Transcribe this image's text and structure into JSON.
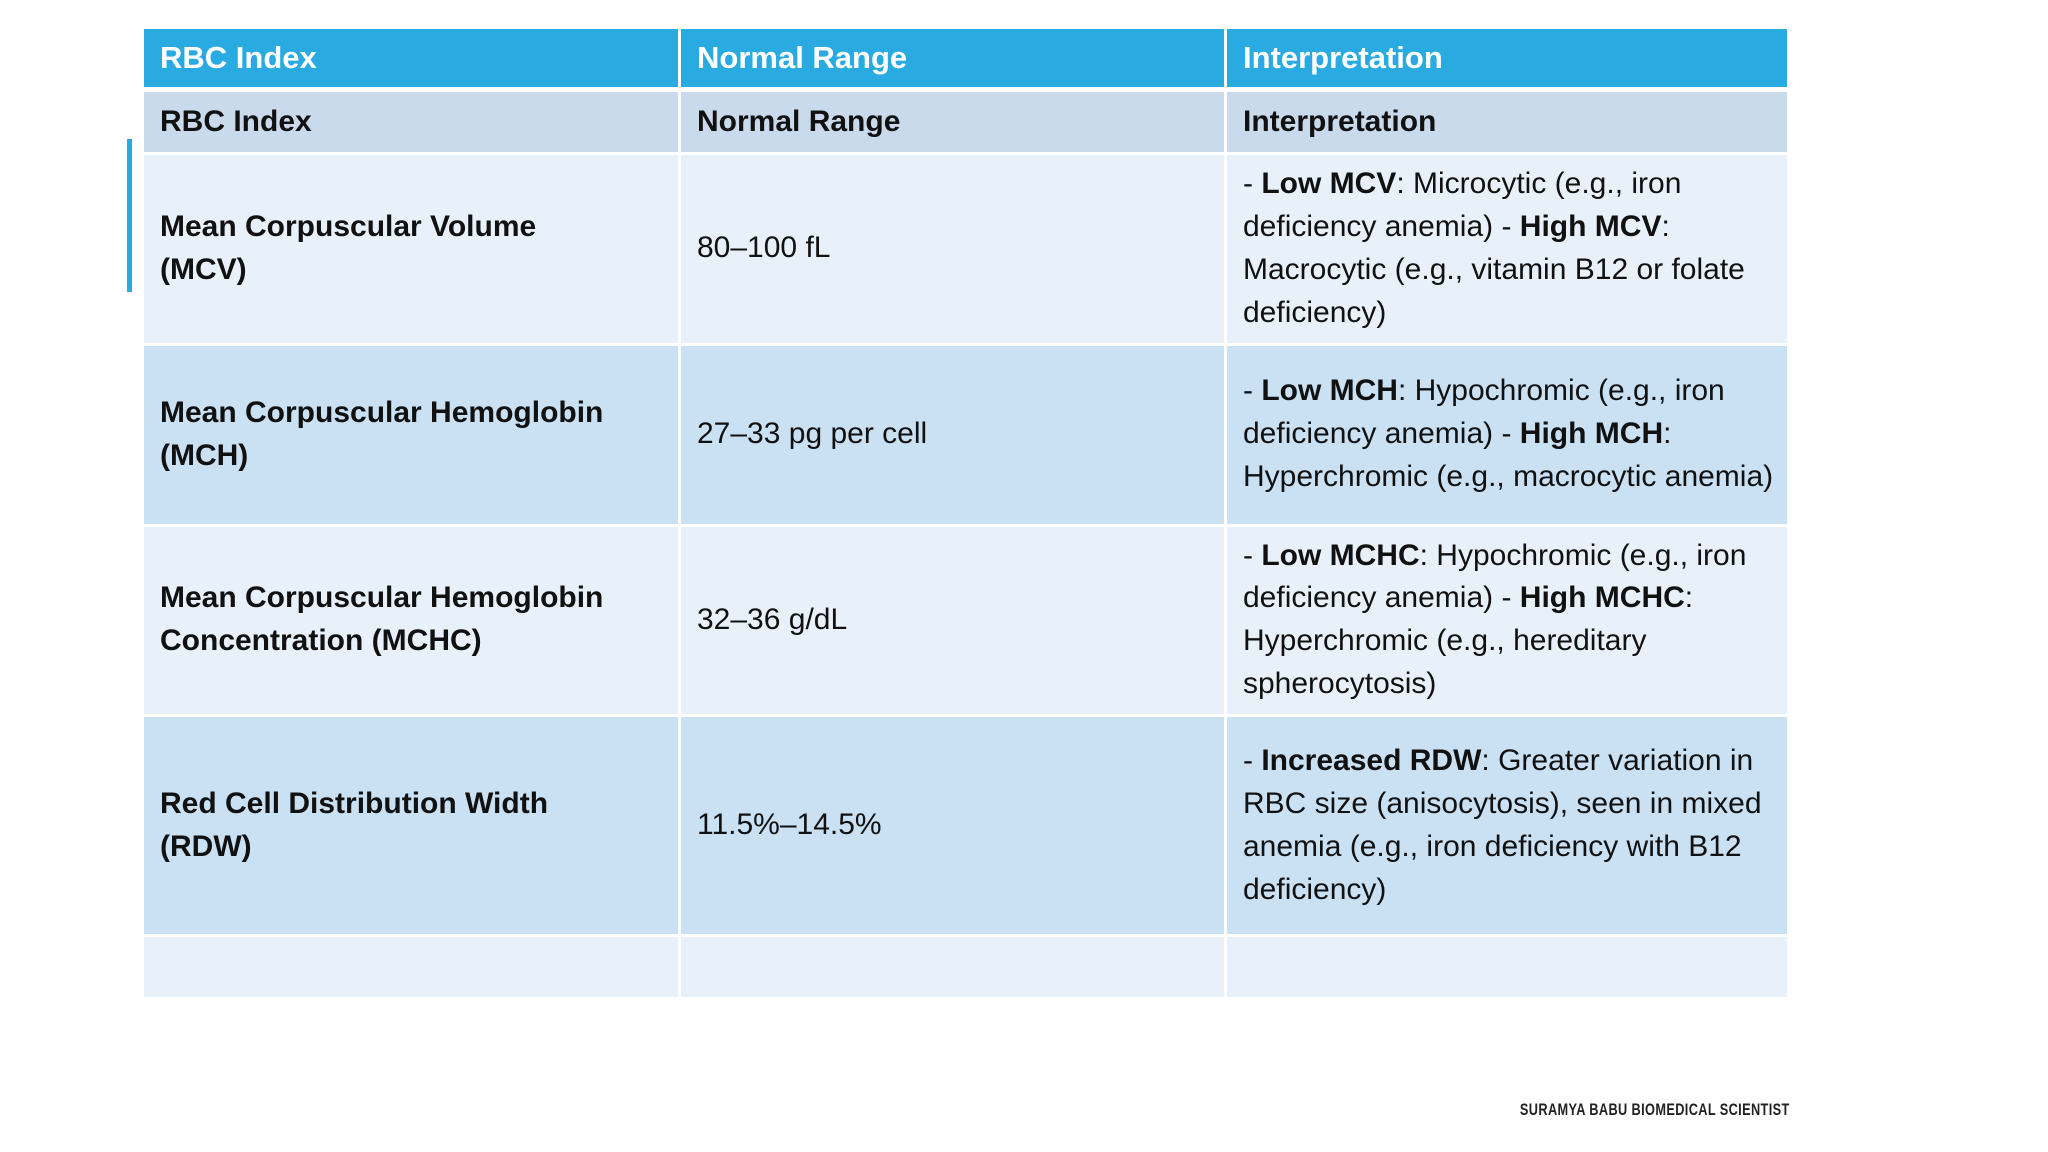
{
  "colors": {
    "header_bg": "#29ABE2",
    "subheader_bg": "#C8DAEC",
    "row_light": "#E8F1F9",
    "row_dark": "#CAE0F3",
    "header_text": "#FFFFFF",
    "body_text": "#111111",
    "accent": "#29ABE2"
  },
  "accent_bar": {
    "present": true
  },
  "table": {
    "header": {
      "col1": "RBC Index",
      "col2": "Normal Range",
      "col3": "Interpretation"
    },
    "subheader": {
      "col1": "RBC Index",
      "col2": "Normal Range",
      "col3": "Interpretation"
    },
    "rows": [
      {
        "index": "Mean Corpuscular Volume\n(MCV)",
        "range": "80–100 fL",
        "interpretation": [
          {
            "text": "- ",
            "bold": false
          },
          {
            "text": "Low MCV",
            "bold": true
          },
          {
            "text": ": Microcytic (e.g., iron deficiency anemia) - ",
            "bold": false
          },
          {
            "text": "High MCV",
            "bold": true
          },
          {
            "text": ": Macrocytic (e.g., vitamin B12 or folate deficiency)",
            "bold": false
          }
        ]
      },
      {
        "index": "Mean Corpuscular Hemoglobin\n(MCH)",
        "range": "27–33 pg per cell",
        "interpretation": [
          {
            "text": "- ",
            "bold": false
          },
          {
            "text": "Low MCH",
            "bold": true
          },
          {
            "text": ": Hypochromic (e.g., iron deficiency anemia) - ",
            "bold": false
          },
          {
            "text": "High MCH",
            "bold": true
          },
          {
            "text": ": Hyperchromic (e.g., macrocytic anemia)",
            "bold": false
          }
        ]
      },
      {
        "index": "Mean Corpuscular Hemoglobin\nConcentration (MCHC)",
        "range": "32–36 g/dL",
        "interpretation": [
          {
            "text": "- ",
            "bold": false
          },
          {
            "text": "Low MCHC",
            "bold": true
          },
          {
            "text": ": Hypochromic (e.g., iron deficiency anemia) - ",
            "bold": false
          },
          {
            "text": "High MCHC",
            "bold": true
          },
          {
            "text": ": Hyperchromic (e.g., hereditary spherocytosis)",
            "bold": false
          }
        ]
      },
      {
        "index": "Red Cell Distribution Width\n(RDW)",
        "range": "11.5%–14.5%",
        "interpretation": [
          {
            "text": "- ",
            "bold": false
          },
          {
            "text": "Increased RDW",
            "bold": true
          },
          {
            "text": ": Greater variation in RBC size (anisocytosis), seen in mixed anemia (e.g., iron deficiency with B12 deficiency)",
            "bold": false
          }
        ]
      }
    ],
    "has_trailing_empty_row": true
  },
  "footer": {
    "credit": "SURAMYA BABU BIOMEDICAL SCIENTIST"
  }
}
